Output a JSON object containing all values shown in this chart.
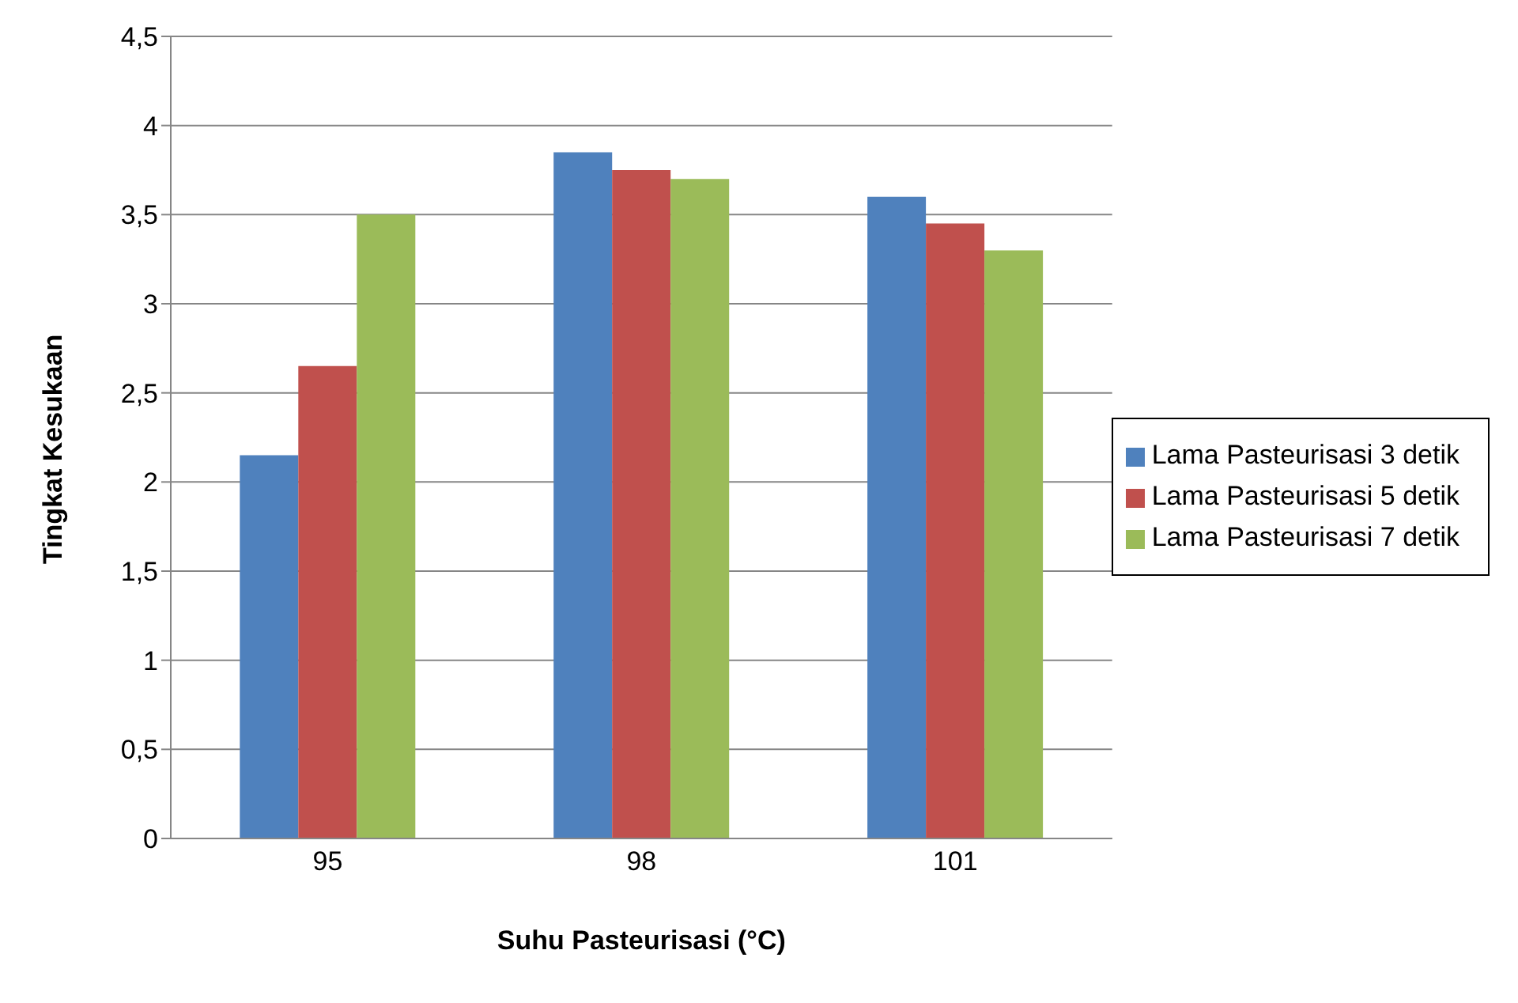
{
  "chart_data": {
    "type": "bar",
    "xlabel": "Suhu Pasteurisasi (°C)",
    "ylabel": "Tingkat Kesukaan",
    "categories": [
      "95",
      "98",
      "101"
    ],
    "series": [
      {
        "name": "Lama Pasteurisasi 3 detik",
        "color": "#4f81bd",
        "values": [
          2.15,
          3.85,
          3.6
        ]
      },
      {
        "name": "Lama Pasteurisasi 5 detik",
        "color": "#c0504d",
        "values": [
          2.65,
          3.75,
          3.45
        ]
      },
      {
        "name": "Lama Pasteurisasi 7 detik",
        "color": "#9bbb59",
        "values": [
          3.5,
          3.7,
          3.3
        ]
      }
    ],
    "ylim": [
      0,
      4.5
    ],
    "yticks": [
      0,
      {
        "value": 0.5,
        "label": "0,5"
      },
      1,
      {
        "value": 1.5,
        "label": "1,5"
      },
      2,
      {
        "value": 2.5,
        "label": "2,5"
      },
      3,
      {
        "value": 3.5,
        "label": "3,5"
      },
      4,
      {
        "value": 4.5,
        "label": "4,5"
      }
    ],
    "grid": "y",
    "legend": "right"
  }
}
